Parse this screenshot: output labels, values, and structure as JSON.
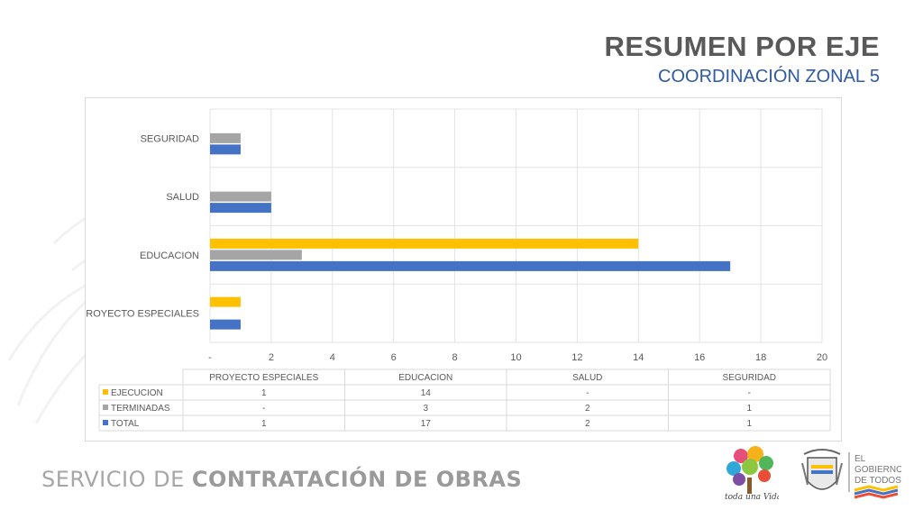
{
  "header": {
    "title": "RESUMEN POR EJE",
    "subtitle": "COORDINACIÓN ZONAL 5"
  },
  "footer": {
    "org_light": "SERVICIO DE ",
    "org_bold": "CONTRATACIÓN DE OBRAS",
    "logo_left_text": "toda una Vida",
    "logo_right_text": "EL GOBIERNO DE TODOS"
  },
  "colors": {
    "EJECUCION": "#ffc000",
    "TERMINADAS": "#a5a5a5",
    "TOTAL": "#4472c4"
  },
  "chart_data": {
    "type": "bar",
    "orientation": "horizontal",
    "categories": [
      "PROYECTO ESPECIALES",
      "EDUCACION",
      "SALUD",
      "SEGURIDAD"
    ],
    "series": [
      {
        "name": "EJECUCION",
        "values": [
          1,
          14,
          0,
          0
        ],
        "labels": [
          "1",
          "14",
          "-",
          "-"
        ]
      },
      {
        "name": "TERMINADAS",
        "values": [
          0,
          3,
          2,
          1
        ],
        "labels": [
          "-",
          "3",
          "2",
          "1"
        ]
      },
      {
        "name": "TOTAL",
        "values": [
          1,
          17,
          2,
          1
        ],
        "labels": [
          "1",
          "17",
          "2",
          "1"
        ]
      }
    ],
    "xlim": [
      0,
      20
    ],
    "xticks": [
      "-",
      "2",
      "4",
      "6",
      "8",
      "10",
      "12",
      "14",
      "16",
      "18",
      "20"
    ],
    "grid": true,
    "legend": "data-table-below"
  }
}
